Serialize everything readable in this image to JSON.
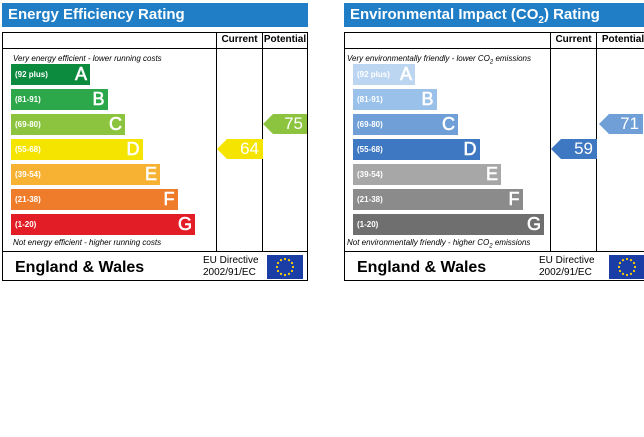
{
  "epc": {
    "title": "Energy Efficiency Rating",
    "col_current": "Current",
    "col_potential": "Potential",
    "top_note": "Very energy efficient - lower running costs",
    "bottom_note": "Not energy efficient - higher running costs",
    "bands": [
      {
        "range": "(92 plus)",
        "letter": "A",
        "color": "#0c8a3e"
      },
      {
        "range": "(81-91)",
        "letter": "B",
        "color": "#2ca84a"
      },
      {
        "range": "(69-80)",
        "letter": "C",
        "color": "#8cc43f"
      },
      {
        "range": "(55-68)",
        "letter": "D",
        "color": "#f5e400"
      },
      {
        "range": "(39-54)",
        "letter": "E",
        "color": "#f7b233"
      },
      {
        "range": "(21-38)",
        "letter": "F",
        "color": "#ee7c2a"
      },
      {
        "range": "(1-20)",
        "letter": "G",
        "color": "#e31d25"
      }
    ],
    "current": {
      "value": "64",
      "band": "D",
      "color": "#f5e400"
    },
    "potential": {
      "value": "75",
      "band": "C",
      "color": "#8cc43f"
    },
    "footer_region": "England & Wales",
    "directive_line1": "EU Directive",
    "directive_line2": "2002/91/EC"
  },
  "eir": {
    "title_pre": "Environmental Impact (CO",
    "title_sub": "2",
    "title_post": ") Rating",
    "col_current": "Current",
    "col_potential": "Potential",
    "top_note_pre": "Very environmentally friendly - lower  CO",
    "top_note_sub": "2",
    "top_note_post": " emissions",
    "bottom_note_pre": "Not environmentally friendly - higher  CO",
    "bottom_note_sub": "2",
    "bottom_note_post": " emissions",
    "bands": [
      {
        "range": "(92 plus)",
        "letter": "A",
        "color": "#bcd6f1"
      },
      {
        "range": "(81-91)",
        "letter": "B",
        "color": "#99c1ea"
      },
      {
        "range": "(69-80)",
        "letter": "C",
        "color": "#6f9fd6"
      },
      {
        "range": "(55-68)",
        "letter": "D",
        "color": "#3e77c2"
      },
      {
        "range": "(39-54)",
        "letter": "E",
        "color": "#a7a7a7"
      },
      {
        "range": "(21-38)",
        "letter": "F",
        "color": "#8b8b8b"
      },
      {
        "range": "(1-20)",
        "letter": "G",
        "color": "#6f6f6f"
      }
    ],
    "current": {
      "value": "59",
      "band": "D",
      "color": "#3e77c2"
    },
    "potential": {
      "value": "71",
      "band": "C",
      "color": "#6f9fd6"
    },
    "footer_region": "England & Wales",
    "directive_line1": "EU Directive",
    "directive_line2": "2002/91/EC"
  }
}
